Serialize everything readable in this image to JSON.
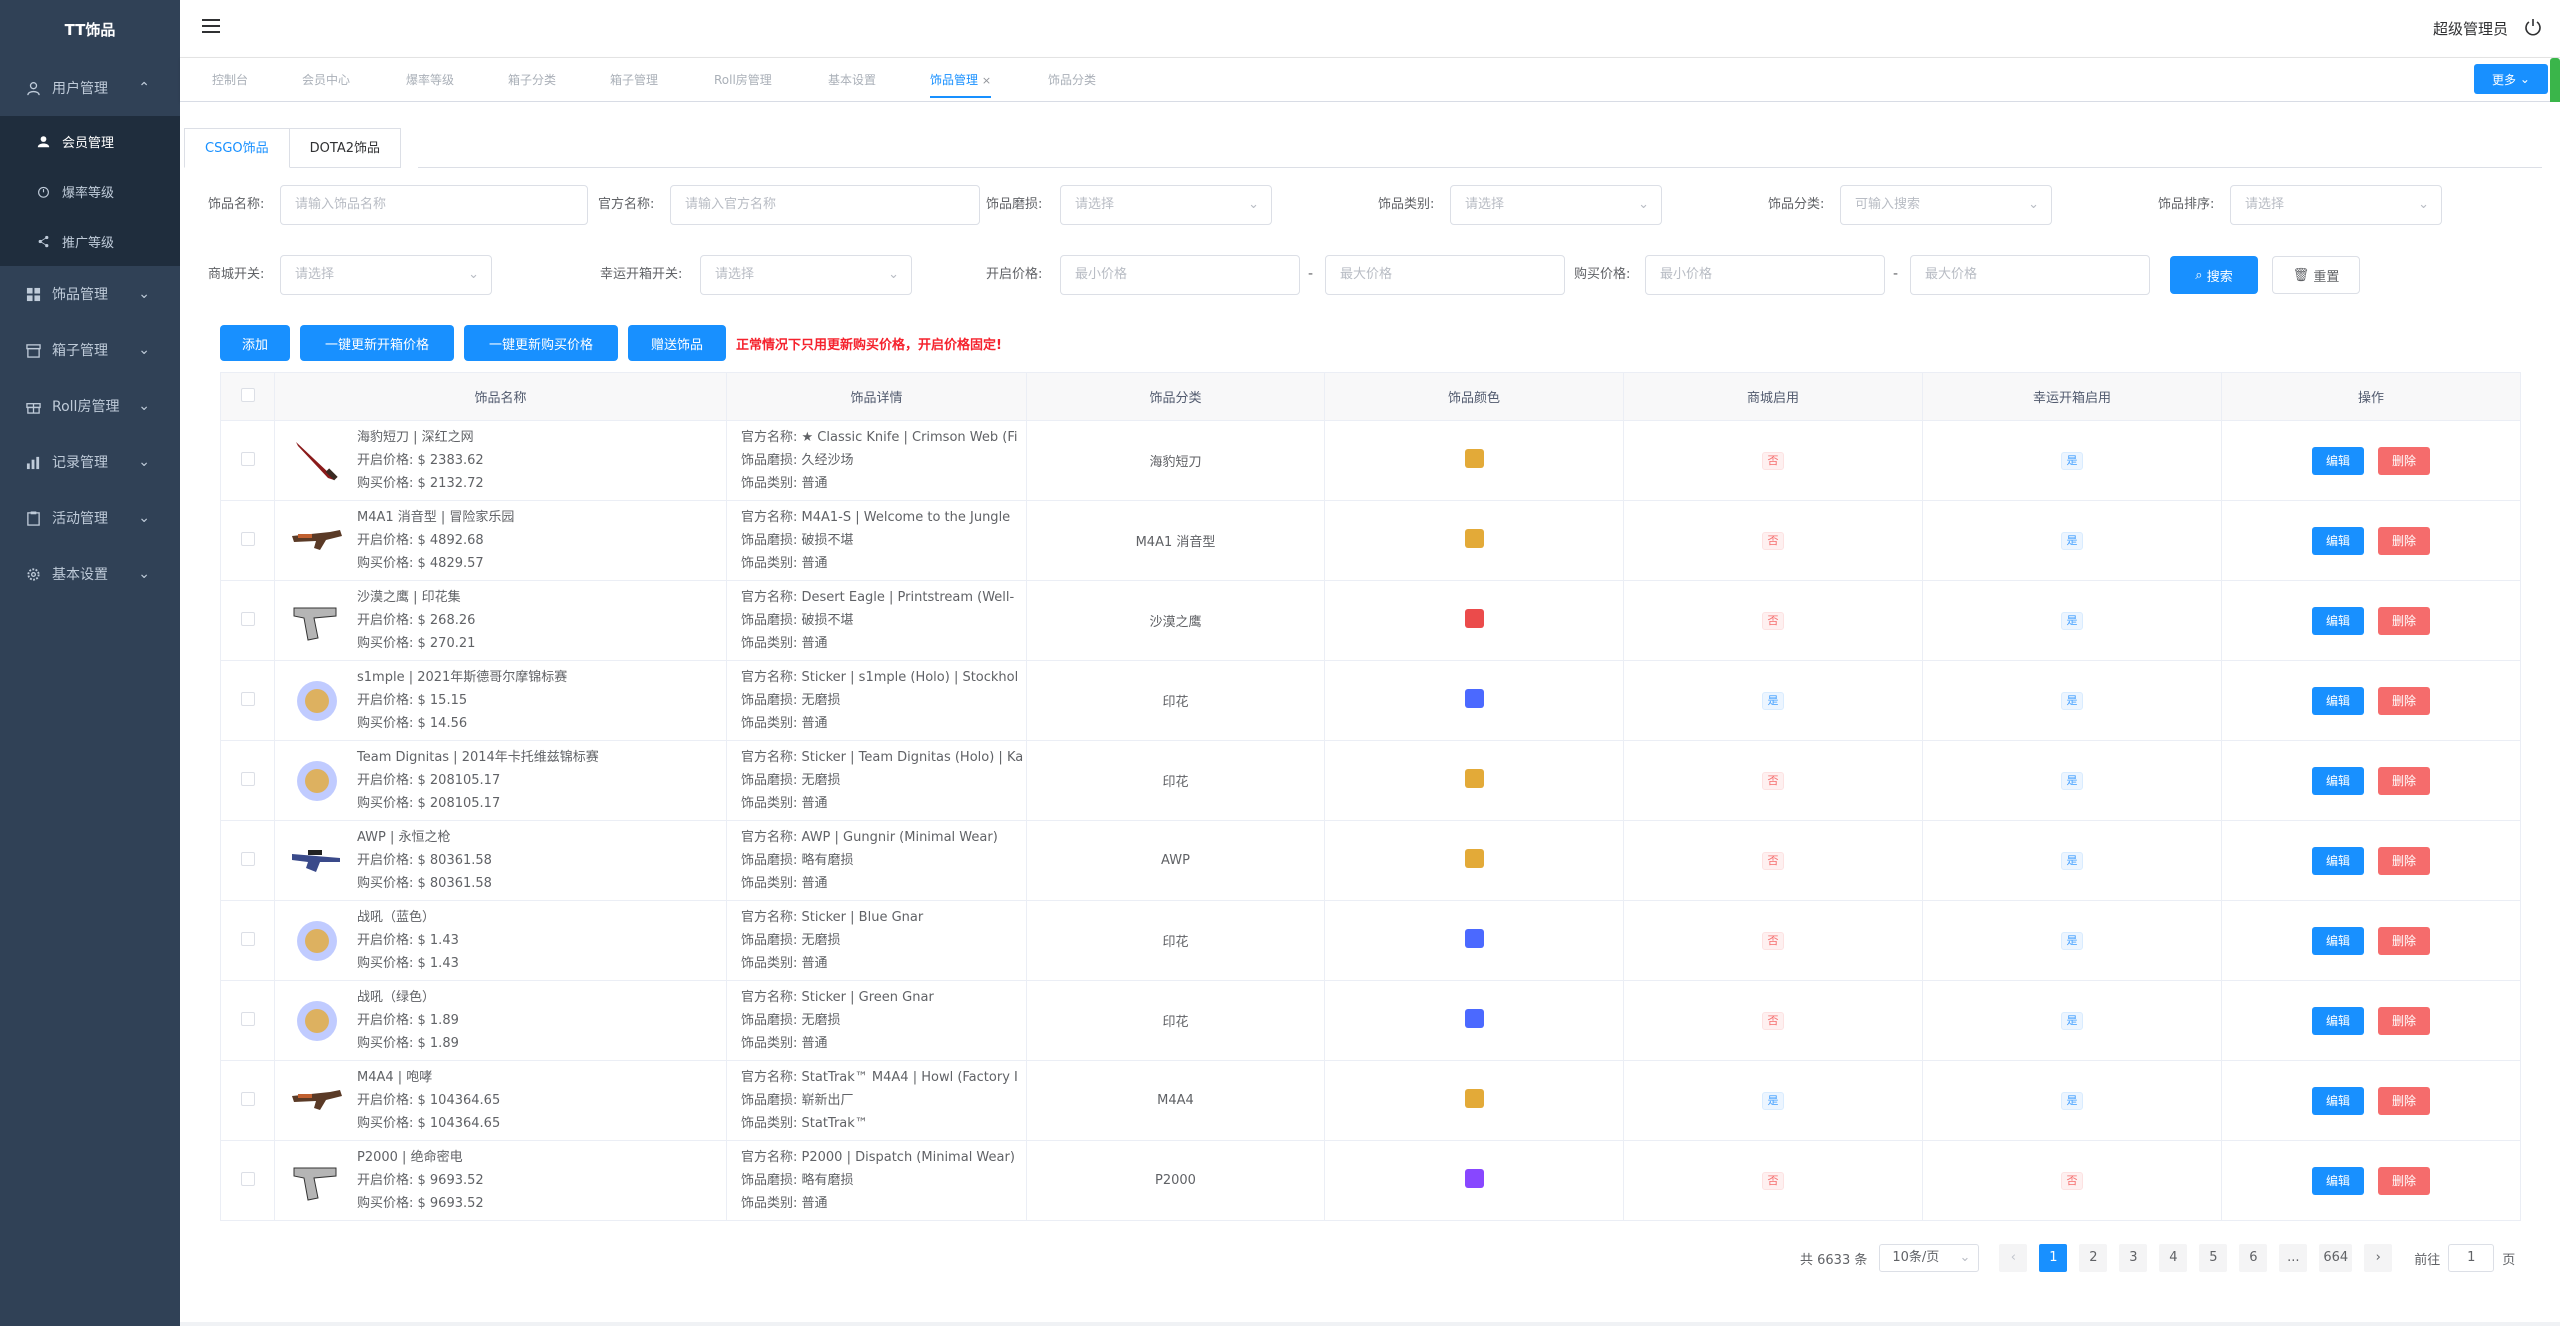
{
  "app": {
    "title": "TT饰品",
    "user": "超级管理员"
  },
  "sidebar": {
    "items": [
      {
        "label": "用户管理",
        "icon": "user-icon",
        "expanded": true,
        "children": [
          {
            "label": "会员管理",
            "icon": "person-icon",
            "active": true
          },
          {
            "label": "爆率等级",
            "icon": "timer-icon"
          },
          {
            "label": "推广等级",
            "icon": "share-icon"
          }
        ]
      },
      {
        "label": "饰品管理",
        "icon": "grid-icon"
      },
      {
        "label": "箱子管理",
        "icon": "box-icon"
      },
      {
        "label": "Roll房管理",
        "icon": "gift-icon"
      },
      {
        "label": "记录管理",
        "icon": "chart-icon"
      },
      {
        "label": "活动管理",
        "icon": "clipboard-icon"
      },
      {
        "label": "基本设置",
        "icon": "gear-icon"
      }
    ]
  },
  "tags": {
    "items": [
      "控制台",
      "会员中心",
      "爆率等级",
      "箱子分类",
      "箱子管理",
      "Roll房管理",
      "基本设置",
      "饰品管理",
      "饰品分类"
    ],
    "active": "饰品管理",
    "more": "更多"
  },
  "tabs": {
    "items": [
      "CSGO饰品",
      "DOTA2饰品"
    ],
    "active": "CSGO饰品"
  },
  "filters": {
    "name": {
      "label": "饰品名称:",
      "placeholder": "请输入饰品名称"
    },
    "official": {
      "label": "官方名称:",
      "placeholder": "请输入官方名称"
    },
    "wear": {
      "label": "饰品磨损:",
      "placeholder": "请选择"
    },
    "type": {
      "label": "饰品类别:",
      "placeholder": "请选择"
    },
    "category": {
      "label": "饰品分类:",
      "placeholder": "可输入搜索"
    },
    "sort": {
      "label": "饰品排序:",
      "placeholder": "请选择"
    },
    "mall": {
      "label": "商城开关:",
      "placeholder": "请选择"
    },
    "lucky": {
      "label": "幸运开箱开关:",
      "placeholder": "请选择"
    },
    "open_price": {
      "label": "开启价格:",
      "min": "最小价格",
      "max": "最大价格"
    },
    "buy_price": {
      "label": "购买价格:",
      "min": "最小价格",
      "max": "最大价格"
    },
    "search": "搜索",
    "reset": "重置",
    "dash": "-"
  },
  "actions": {
    "add": "添加",
    "update_open": "一键更新开箱价格",
    "update_buy": "一键更新购买价格",
    "gift": "赠送饰品",
    "warning": "正常情况下只用更新购买价格，开启价格固定!"
  },
  "colors": {
    "gold": "#e3aa38",
    "red": "#eb4b4b",
    "blue": "#4b69ff",
    "purple": "#8847ff",
    "primary": "#1890ff",
    "danger": "#f56c6c"
  },
  "table": {
    "headers": [
      "饰品名称",
      "饰品详情",
      "饰品分类",
      "饰品颜色",
      "商城启用",
      "幸运开箱启用",
      "操作"
    ],
    "edit": "编辑",
    "delete": "删除",
    "yes": "是",
    "no": "否",
    "rows": [
      {
        "name": "海豹短刀 | 深红之网",
        "open": "开启价格: $ 2383.62",
        "buy": "购买价格: $ 2132.72",
        "official": "官方名称: ★ Classic Knife | Crimson Web (Fi",
        "wear": "饰品磨损: 久经沙场",
        "kind": "饰品类别: 普通",
        "cat": "海豹短刀",
        "color": "gold",
        "mall": "否",
        "lucky": "是",
        "icon": "knife-icon"
      },
      {
        "name": "M4A1 消音型 | 冒险家乐园",
        "open": "开启价格: $ 4892.68",
        "buy": "购买价格: $ 4829.57",
        "official": "官方名称: M4A1-S | Welcome to the Jungle",
        "wear": "饰品磨损: 破损不堪",
        "kind": "饰品类别: 普通",
        "cat": "M4A1 消音型",
        "color": "gold",
        "mall": "否",
        "lucky": "是",
        "icon": "rifle-icon"
      },
      {
        "name": "沙漠之鹰 | 印花集",
        "open": "开启价格: $ 268.26",
        "buy": "购买价格: $ 270.21",
        "official": "官方名称: Desert Eagle | Printstream (Well-",
        "wear": "饰品磨损: 破损不堪",
        "kind": "饰品类别: 普通",
        "cat": "沙漠之鹰",
        "color": "red",
        "mall": "否",
        "lucky": "是",
        "icon": "pistol-icon"
      },
      {
        "name": "s1mple | 2021年斯德哥尔摩锦标赛",
        "open": "开启价格: $ 15.15",
        "buy": "购买价格: $ 14.56",
        "official": "官方名称: Sticker | s1mple (Holo) | Stockhol",
        "wear": "饰品磨损: 无磨损",
        "kind": "饰品类别: 普通",
        "cat": "印花",
        "color": "blue",
        "mall": "是",
        "lucky": "是",
        "icon": "sticker-icon"
      },
      {
        "name": "Team Dignitas | 2014年卡托维兹锦标赛",
        "open": "开启价格: $ 208105.17",
        "buy": "购买价格: $ 208105.17",
        "official": "官方名称: Sticker | Team Dignitas (Holo) | Ka",
        "wear": "饰品磨损: 无磨损",
        "kind": "饰品类别: 普通",
        "cat": "印花",
        "color": "gold",
        "mall": "否",
        "lucky": "是",
        "icon": "sticker-icon"
      },
      {
        "name": "AWP | 永恒之枪",
        "open": "开启价格: $ 80361.58",
        "buy": "购买价格: $ 80361.58",
        "official": "官方名称: AWP | Gungnir (Minimal Wear)",
        "wear": "饰品磨损: 略有磨损",
        "kind": "饰品类别: 普通",
        "cat": "AWP",
        "color": "gold",
        "mall": "否",
        "lucky": "是",
        "icon": "sniper-icon"
      },
      {
        "name": "战吼（蓝色）",
        "open": "开启价格: $ 1.43",
        "buy": "购买价格: $ 1.43",
        "official": "官方名称: Sticker | Blue Gnar",
        "wear": "饰品磨损: 无磨损",
        "kind": "饰品类别: 普通",
        "cat": "印花",
        "color": "blue",
        "mall": "否",
        "lucky": "是",
        "icon": "sticker-icon"
      },
      {
        "name": "战吼（绿色）",
        "open": "开启价格: $ 1.89",
        "buy": "购买价格: $ 1.89",
        "official": "官方名称: Sticker | Green Gnar",
        "wear": "饰品磨损: 无磨损",
        "kind": "饰品类别: 普通",
        "cat": "印花",
        "color": "blue",
        "mall": "否",
        "lucky": "是",
        "icon": "sticker-icon"
      },
      {
        "name": "M4A4 | 咆哮",
        "open": "开启价格: $ 104364.65",
        "buy": "购买价格: $ 104364.65",
        "official": "官方名称: StatTrak™ M4A4 | Howl (Factory I",
        "wear": "饰品磨损: 崭新出厂",
        "kind": "饰品类别: StatTrak™",
        "cat": "M4A4",
        "color": "gold",
        "mall": "是",
        "lucky": "是",
        "icon": "rifle-icon"
      },
      {
        "name": "P2000 | 绝命密电",
        "open": "开启价格: $ 9693.52",
        "buy": "购买价格: $ 9693.52",
        "official": "官方名称: P2000 | Dispatch (Minimal Wear)",
        "wear": "饰品磨损: 略有磨损",
        "kind": "饰品类别: 普通",
        "cat": "P2000",
        "color": "purple",
        "mall": "否",
        "lucky": "否",
        "icon": "pistol-icon"
      }
    ]
  },
  "pagination": {
    "total": "共 6633 条",
    "page_size": "10条/页",
    "pages": [
      "1",
      "2",
      "3",
      "4",
      "5",
      "6",
      "...",
      "664"
    ],
    "current": "1",
    "goto": "前往",
    "goto_value": "1",
    "page_suffix": "页",
    "prev": "‹",
    "next": "›"
  }
}
